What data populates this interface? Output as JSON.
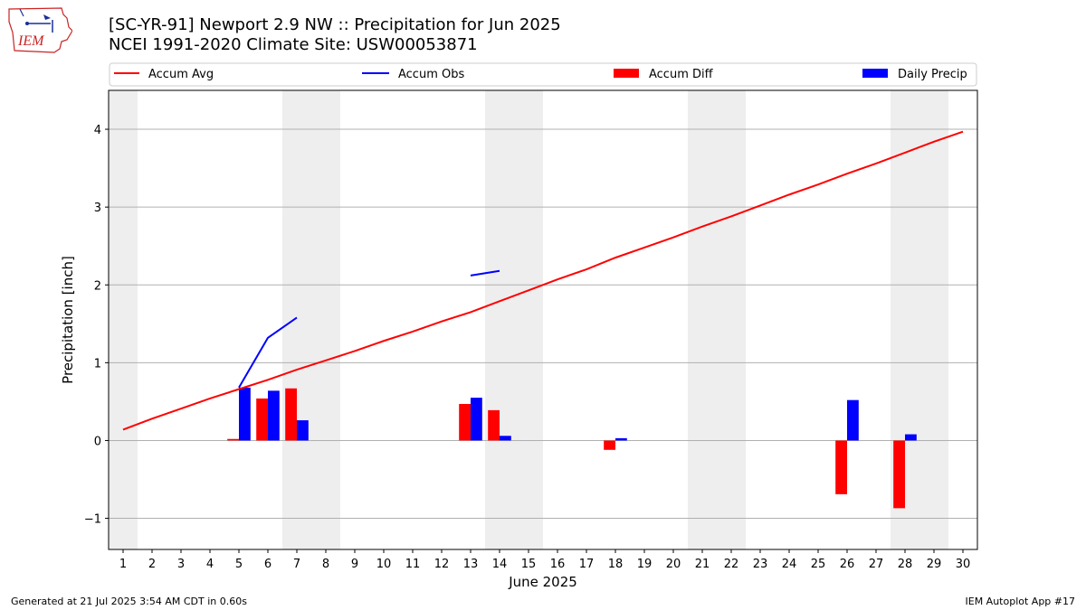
{
  "header": {
    "logo_text": "IEM",
    "title_line1": "[SC-YR-91] Newport 2.9 NW :: Precipitation for Jun 2025",
    "title_line2": "NCEI 1991-2020 Climate Site: USW00053871"
  },
  "footer": {
    "generated": "Generated at 21 Jul 2025 3:54 AM CDT in 0.60s",
    "app": "IEM Autoplot App #17"
  },
  "colors": {
    "accum_avg": "#ff0000",
    "accum_obs": "#0000ff",
    "accum_diff": "#ff0000",
    "daily_precip": "#0000ff",
    "weekend_shade": "#eeeeee",
    "grid": "#b0b0b0"
  },
  "chart_data": {
    "type": "bar",
    "xlabel": "June 2025",
    "ylabel": "Precipitation [inch]",
    "xlim": [
      0.5,
      30.5
    ],
    "ylim": [
      -1.4,
      4.5
    ],
    "yticks": [
      -1,
      0,
      1,
      2,
      3,
      4
    ],
    "ytick_labels": [
      "−1",
      "0",
      "1",
      "2",
      "3",
      "4"
    ],
    "xticks": [
      1,
      2,
      3,
      4,
      5,
      6,
      7,
      8,
      9,
      10,
      11,
      12,
      13,
      14,
      15,
      16,
      17,
      18,
      19,
      20,
      21,
      22,
      23,
      24,
      25,
      26,
      27,
      28,
      29,
      30
    ],
    "grid": "horizontal",
    "legend_placement": "top",
    "legend": [
      "Accum Avg",
      "Accum Obs",
      "Accum Diff",
      "Daily Precip"
    ],
    "weekend_days": [
      1,
      7,
      8,
      14,
      15,
      21,
      22,
      28,
      29
    ],
    "accum_avg": {
      "days": [
        1,
        2,
        3,
        4,
        5,
        6,
        7,
        8,
        9,
        10,
        11,
        12,
        13,
        14,
        15,
        16,
        17,
        18,
        19,
        20,
        21,
        22,
        23,
        24,
        25,
        26,
        27,
        28,
        29,
        30
      ],
      "values": [
        0.14,
        0.28,
        0.41,
        0.54,
        0.66,
        0.78,
        0.91,
        1.03,
        1.15,
        1.28,
        1.4,
        1.53,
        1.65,
        1.79,
        1.93,
        2.07,
        2.2,
        2.35,
        2.48,
        2.61,
        2.75,
        2.88,
        3.02,
        3.16,
        3.29,
        3.43,
        3.56,
        3.7,
        3.84,
        3.97
      ]
    },
    "accum_obs": [
      {
        "days": [
          5,
          6,
          7
        ],
        "values": [
          0.68,
          1.32,
          1.58
        ]
      },
      {
        "days": [
          13,
          14
        ],
        "values": [
          2.12,
          2.18
        ]
      }
    ],
    "accum_diff": {
      "days": [
        5,
        6,
        7,
        13,
        14,
        18,
        26,
        28
      ],
      "values": [
        0.02,
        0.54,
        0.67,
        0.47,
        0.39,
        -0.12,
        -0.69,
        -0.87
      ]
    },
    "daily_precip": {
      "days": [
        5,
        6,
        7,
        13,
        14,
        18,
        26,
        28
      ],
      "values": [
        0.68,
        0.64,
        0.26,
        0.55,
        0.06,
        0.03,
        0.52,
        0.08
      ]
    }
  }
}
